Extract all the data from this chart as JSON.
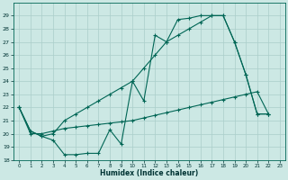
{
  "xlabel": "Humidex (Indice chaleur)",
  "xlim": [
    -0.5,
    23.5
  ],
  "ylim": [
    18,
    30
  ],
  "yticks": [
    18,
    19,
    20,
    21,
    22,
    23,
    24,
    25,
    26,
    27,
    28,
    29
  ],
  "xticks": [
    0,
    1,
    2,
    3,
    4,
    5,
    6,
    7,
    8,
    9,
    10,
    11,
    12,
    13,
    14,
    15,
    16,
    17,
    18,
    19,
    20,
    21,
    22,
    23
  ],
  "bg_color": "#cce8e4",
  "grid_color": "#aaceca",
  "line_color": "#006655",
  "series": [
    {
      "x": [
        0,
        1,
        2,
        3,
        4,
        5,
        6,
        7,
        8,
        9,
        10,
        11,
        12,
        13,
        14,
        15,
        16,
        17,
        18,
        19,
        20,
        21,
        22
      ],
      "y": [
        22.0,
        20.2,
        19.8,
        19.5,
        18.4,
        18.4,
        18.5,
        18.5,
        20.3,
        19.2,
        24.0,
        22.5,
        27.5,
        27.0,
        28.7,
        28.8,
        29.0,
        29.0,
        29.0,
        27.0,
        24.5,
        21.5,
        21.5
      ]
    },
    {
      "x": [
        0,
        1,
        2,
        3,
        4,
        5,
        6,
        7,
        8,
        9,
        10,
        11,
        12,
        13,
        14,
        15,
        16,
        17,
        18,
        19,
        20,
        21,
        22
      ],
      "y": [
        22.0,
        20.2,
        19.8,
        20.0,
        21.0,
        21.5,
        22.0,
        22.5,
        23.0,
        23.5,
        24.0,
        25.0,
        26.0,
        27.0,
        27.5,
        28.0,
        28.5,
        29.0,
        29.0,
        27.0,
        24.5,
        21.5,
        21.5
      ]
    },
    {
      "x": [
        0,
        1,
        2,
        3,
        4,
        5,
        6,
        7,
        8,
        9,
        10,
        11,
        12,
        13,
        14,
        15,
        16,
        17,
        18,
        19,
        20,
        21,
        22
      ],
      "y": [
        22.0,
        20.0,
        20.0,
        20.2,
        20.4,
        20.5,
        20.6,
        20.7,
        20.8,
        20.9,
        21.0,
        21.2,
        21.4,
        21.6,
        21.8,
        22.0,
        22.2,
        22.4,
        22.6,
        22.8,
        23.0,
        23.2,
        21.5
      ]
    }
  ]
}
